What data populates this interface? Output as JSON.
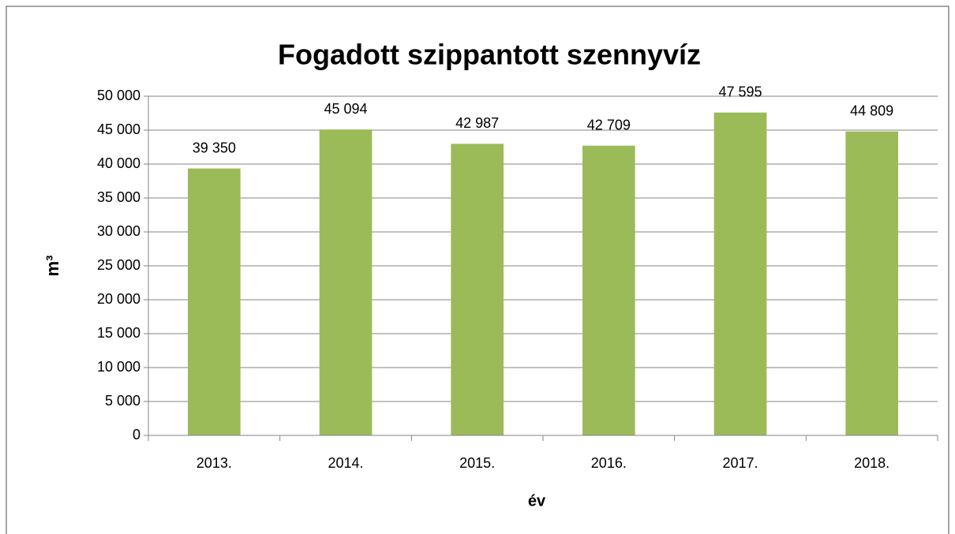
{
  "chart_data": {
    "type": "bar",
    "title": "Fogadott  szippantott szennyvíz",
    "x_label": "év",
    "y_label": "m³",
    "categories": [
      "2013.",
      "2014.",
      "2015.",
      "2016.",
      "2017.",
      "2018."
    ],
    "values": [
      39350,
      45094,
      42987,
      42709,
      47595,
      44809
    ],
    "value_labels": [
      "39 350",
      "45 094",
      "42 987",
      "42 709",
      "47 595",
      "44 809"
    ],
    "color": "#9bbb59",
    "ylim": [
      0,
      50000
    ],
    "yticks": [
      0,
      {
        "value": 5000,
        "label": "5 000"
      },
      {
        "value": 10000,
        "label": "10 000"
      },
      {
        "value": 15000,
        "label": "15 000"
      },
      {
        "value": 20000,
        "label": "20 000"
      },
      {
        "value": 25000,
        "label": "25 000"
      },
      {
        "value": 30000,
        "label": "30 000"
      },
      {
        "value": 35000,
        "label": "35 000"
      },
      {
        "value": 40000,
        "label": "40 000"
      },
      {
        "value": 45000,
        "label": "45 000"
      },
      {
        "value": 50000,
        "label": "50 000"
      }
    ],
    "grid": true
  }
}
